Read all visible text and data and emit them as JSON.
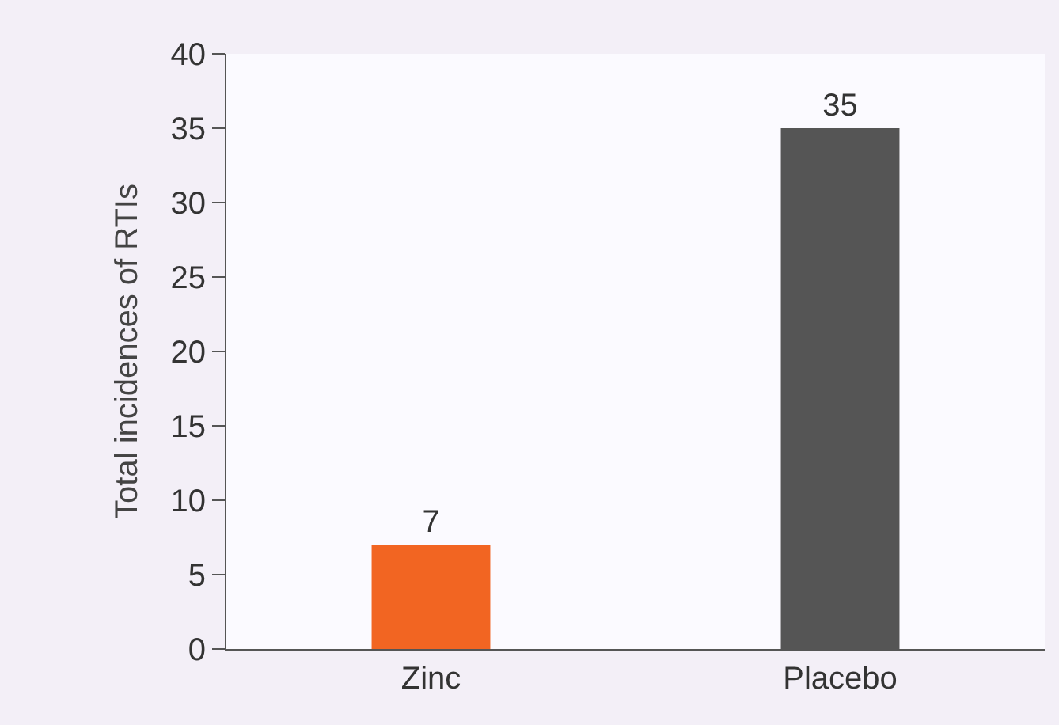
{
  "chart_data": {
    "type": "bar",
    "ylabel": "Total incidences of RTIs",
    "categories": [
      "Zinc",
      "Placebo"
    ],
    "values": [
      7,
      35
    ],
    "colors": [
      "#f26522",
      "#555555"
    ],
    "ylim": [
      0,
      40
    ],
    "yticks": [
      0,
      5,
      10,
      15,
      20,
      25,
      30,
      35,
      40
    ],
    "data_labels": true
  }
}
